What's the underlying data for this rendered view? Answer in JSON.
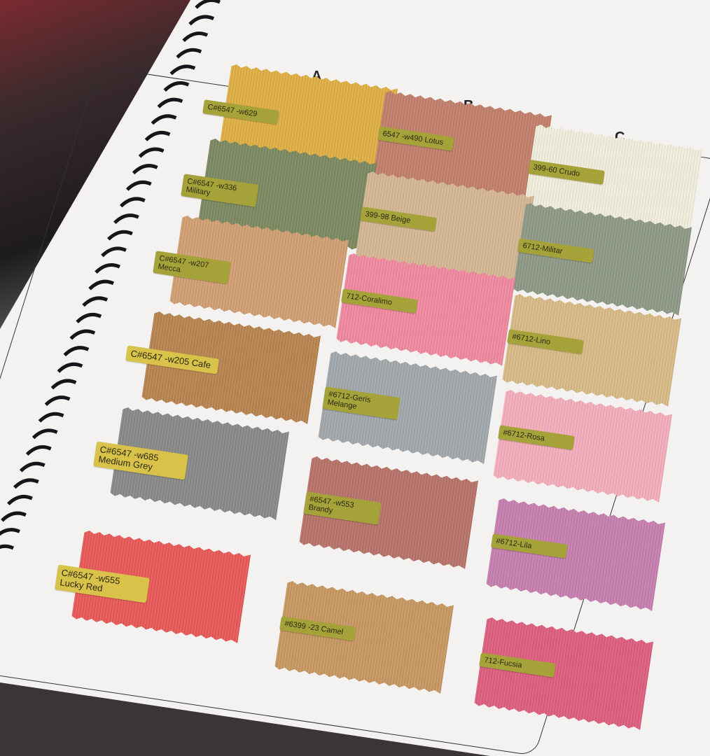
{
  "columns": [
    "A",
    "B",
    "C"
  ],
  "swatches": [
    {
      "id": "A1",
      "label": "C#6547 -w629",
      "color": "#e0b045"
    },
    {
      "id": "B1",
      "label": "6547 -w490 Lotus",
      "color": "#c2806c"
    },
    {
      "id": "C1",
      "label": "399-60 Crudo",
      "color": "#f1eedc"
    },
    {
      "id": "A2",
      "label": "C#6547 -w336 Military",
      "color": "#7d8a62"
    },
    {
      "id": "B2",
      "label": "399-98 Beige",
      "color": "#d6b894"
    },
    {
      "id": "C2",
      "label": "6712-Militar",
      "color": "#909a88"
    },
    {
      "id": "A3",
      "label": "C#6547 -w207 Mecca",
      "color": "#d2a074"
    },
    {
      "id": "B3",
      "label": "712-Coralimo",
      "color": "#f08aa0"
    },
    {
      "id": "C3",
      "label": "#6712-Lino",
      "color": "#d8ba86"
    },
    {
      "id": "A4",
      "label": "C#6547 -w205 Cafe",
      "color": "#b88550"
    },
    {
      "id": "B4",
      "label": "#6712-Geris Melange",
      "color": "#a3a8ac"
    },
    {
      "id": "C4",
      "label": "#6712-Rosa",
      "color": "#f4aebc"
    },
    {
      "id": "A5",
      "label": "C#6547 -w685 Medium Grey",
      "color": "#8a8a88"
    },
    {
      "id": "B5",
      "label": "#6547 -w553 Brandy",
      "color": "#b8746a"
    },
    {
      "id": "C5",
      "label": "#6712-Lila",
      "color": "#c880b0"
    },
    {
      "id": "A6",
      "label": "C#6547 -w555 Lucky Red",
      "color": "#e85a58"
    },
    {
      "id": "B6",
      "label": "#6399 -23 Camel",
      "color": "#c89862"
    },
    {
      "id": "C6",
      "label": "712-Fucsia",
      "color": "#de6080"
    }
  ]
}
